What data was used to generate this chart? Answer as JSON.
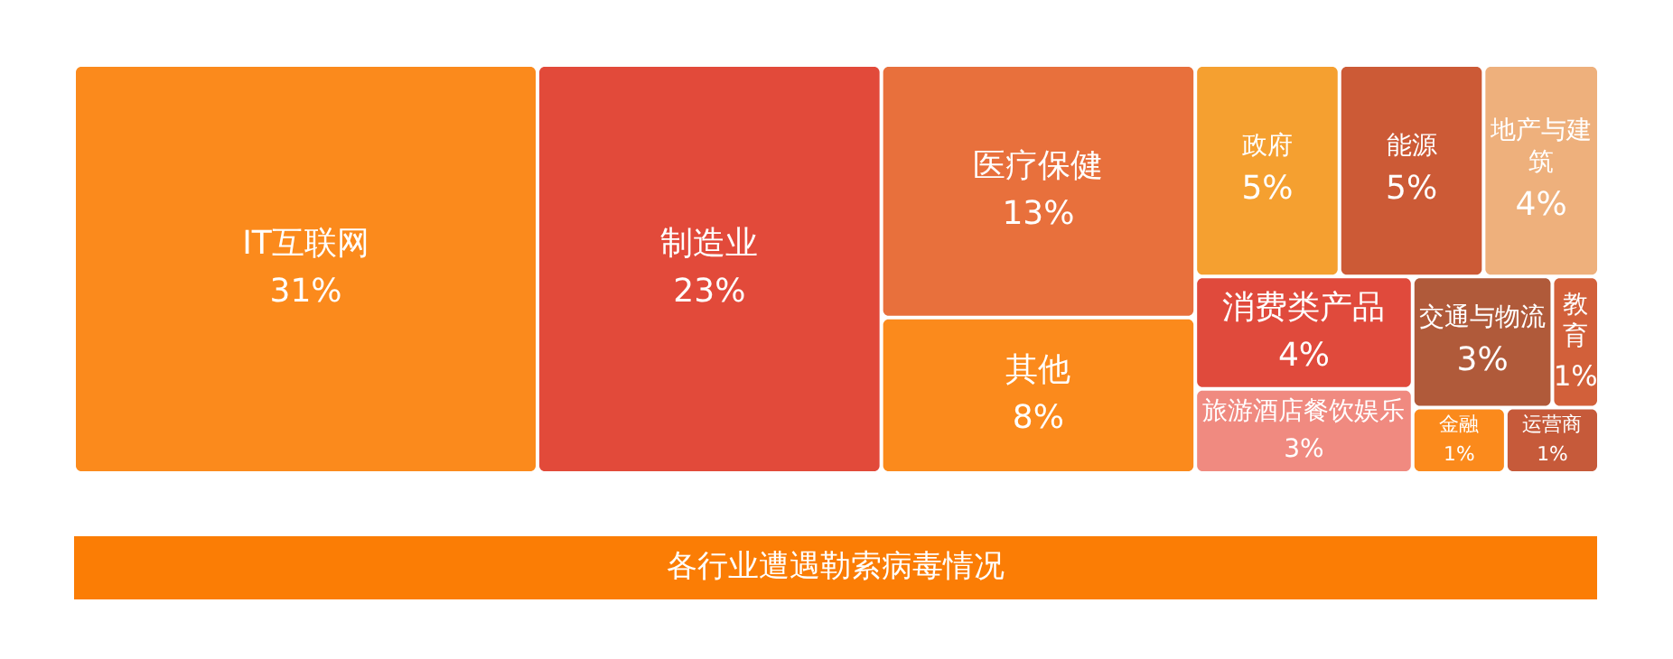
{
  "chart_data": {
    "type": "other",
    "title": "各行业遭遇勒索病毒情况",
    "categories": [
      "IT互联网",
      "制造业",
      "医疗保健",
      "其他",
      "政府",
      "能源",
      "地产与建筑",
      "消费类产品",
      "旅游酒店餐饮娱乐",
      "交通与物流",
      "教育",
      "金融",
      "运营商"
    ],
    "values": [
      31,
      23,
      13,
      8,
      5,
      5,
      4,
      4,
      3,
      3,
      1,
      1,
      1
    ],
    "value_labels": [
      "31%",
      "23%",
      "13%",
      "8%",
      "5%",
      "5%",
      "4%",
      "4%",
      "3%",
      "3%",
      "1%",
      "1%",
      "1%"
    ],
    "colors": [
      "#fb8a1c",
      "#e24a3a",
      "#e8703c",
      "#fb8a1c",
      "#f5a030",
      "#cc5a36",
      "#eeb07c",
      "#e04a3c",
      "#f08a80",
      "#b05a3a",
      "#d2603a",
      "#fb8a1c",
      "#c65a3a"
    ]
  }
}
